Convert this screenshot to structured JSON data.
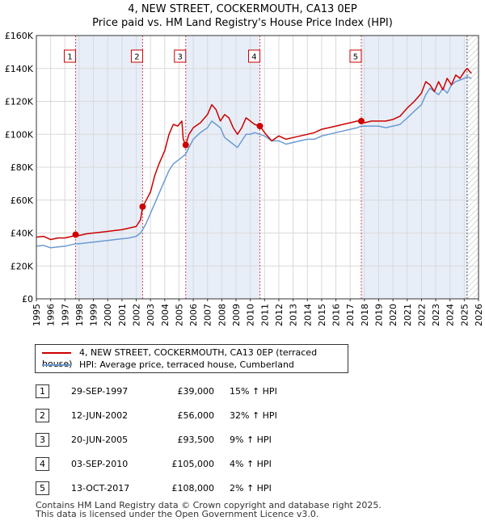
{
  "title": "4, NEW STREET, COCKERMOUTH, CA13 0EP",
  "subtitle": "Price paid vs. HM Land Registry's House Price Index (HPI)",
  "legend": {
    "red_label": "4, NEW STREET, COCKERMOUTH, CA13 0EP (terraced house)",
    "blue_label": "HPI: Average price, terraced house, Cumberland"
  },
  "sales": [
    {
      "num": "1",
      "date": "29-SEP-1997",
      "price": "£39,000",
      "hpi": "15% ↑ HPI"
    },
    {
      "num": "2",
      "date": "12-JUN-2002",
      "price": "£56,000",
      "hpi": "32% ↑ HPI"
    },
    {
      "num": "3",
      "date": "20-JUN-2005",
      "price": "£93,500",
      "hpi": "9% ↑ HPI"
    },
    {
      "num": "4",
      "date": "03-SEP-2010",
      "price": "£105,000",
      "hpi": "4% ↑ HPI"
    },
    {
      "num": "5",
      "date": "13-OCT-2017",
      "price": "£108,000",
      "hpi": "2% ↑ HPI"
    }
  ],
  "footer": {
    "line1": "Contains HM Land Registry data © Crown copyright and database right 2025.",
    "line2": "This data is licensed under the Open Government Licence v3.0."
  },
  "colors": {
    "red": "#cc0000",
    "blue": "#6b9bd2",
    "shade": "#e8eef8",
    "grid": "#d9d9d9"
  },
  "chart_data": {
    "type": "line",
    "title": "4, NEW STREET, COCKERMOUTH, CA13 0EP",
    "subtitle": "Price paid vs. HM Land Registry's House Price Index (HPI)",
    "xlabel": "",
    "ylabel": "",
    "xlim": [
      1995,
      2026
    ],
    "ylim": [
      0,
      160000
    ],
    "x_ticks": [
      1995,
      1996,
      1997,
      1998,
      1999,
      2000,
      2001,
      2002,
      2003,
      2004,
      2005,
      2006,
      2007,
      2008,
      2009,
      2010,
      2011,
      2012,
      2013,
      2014,
      2015,
      2016,
      2017,
      2018,
      2019,
      2020,
      2021,
      2022,
      2023,
      2024,
      2025,
      2026
    ],
    "y_ticks": [
      0,
      20000,
      40000,
      60000,
      80000,
      100000,
      120000,
      140000,
      160000
    ],
    "y_tick_labels": [
      "£0",
      "£20K",
      "£40K",
      "£60K",
      "£80K",
      "£100K",
      "£120K",
      "£140K",
      "£160K"
    ],
    "grid": true,
    "shaded_spans": [
      [
        1997.75,
        2002.45
      ],
      [
        2005.47,
        2010.67
      ],
      [
        2017.78,
        2025.2
      ]
    ],
    "future_hatch_from": 2025.2,
    "sale_points": [
      {
        "label": "1",
        "x": 1997.75,
        "y": 39000
      },
      {
        "label": "2",
        "x": 2002.45,
        "y": 56000
      },
      {
        "label": "3",
        "x": 2005.47,
        "y": 93500
      },
      {
        "label": "4",
        "x": 2010.67,
        "y": 105000
      },
      {
        "label": "5",
        "x": 2017.78,
        "y": 108000
      }
    ],
    "series": [
      {
        "name": "4, NEW STREET, COCKERMOUTH, CA13 0EP (terraced house)",
        "color": "#cc0000",
        "x": [
          1995.0,
          1995.5,
          1996.0,
          1996.5,
          1997.0,
          1997.5,
          1997.75,
          1998.0,
          1998.5,
          1999.0,
          1999.5,
          2000.0,
          2000.5,
          2001.0,
          2001.5,
          2002.0,
          2002.3,
          2002.45,
          2002.7,
          2003.0,
          2003.3,
          2003.6,
          2004.0,
          2004.3,
          2004.6,
          2004.9,
          2005.2,
          2005.3,
          2005.47,
          2005.7,
          2006.0,
          2006.5,
          2007.0,
          2007.3,
          2007.6,
          2007.9,
          2008.2,
          2008.5,
          2008.8,
          2009.1,
          2009.4,
          2009.7,
          2010.0,
          2010.3,
          2010.67,
          2011.0,
          2011.5,
          2012.0,
          2012.5,
          2013.0,
          2013.5,
          2014.0,
          2014.5,
          2015.0,
          2015.5,
          2016.0,
          2016.5,
          2017.0,
          2017.5,
          2017.78,
          2018.0,
          2018.5,
          2019.0,
          2019.5,
          2020.0,
          2020.5,
          2021.0,
          2021.5,
          2022.0,
          2022.3,
          2022.6,
          2022.9,
          2023.2,
          2023.5,
          2023.8,
          2024.1,
          2024.4,
          2024.7,
          2025.0,
          2025.2,
          2025.5
        ],
        "y": [
          37500,
          38000,
          36000,
          37000,
          37000,
          38000,
          39000,
          38500,
          39500,
          40000,
          40500,
          41000,
          41500,
          42000,
          43000,
          44000,
          48000,
          56000,
          60000,
          65000,
          75000,
          82000,
          90000,
          100000,
          106000,
          105000,
          108000,
          97000,
          93500,
          100000,
          104000,
          107000,
          112000,
          118000,
          115000,
          108000,
          112000,
          110000,
          104000,
          100000,
          104000,
          110000,
          108000,
          106000,
          105000,
          101000,
          96000,
          99000,
          97000,
          98000,
          99000,
          100000,
          101000,
          103000,
          104000,
          105000,
          106000,
          107000,
          108000,
          108000,
          107000,
          108000,
          108000,
          108000,
          109000,
          111000,
          116000,
          120000,
          125000,
          132000,
          130000,
          126000,
          132000,
          127000,
          134000,
          130000,
          136000,
          134000,
          138000,
          140000,
          137000
        ]
      },
      {
        "name": "HPI: Average price, terraced house, Cumberland",
        "color": "#6b9bd2",
        "x": [
          1995.0,
          1995.5,
          1996.0,
          1996.5,
          1997.0,
          1997.5,
          1997.75,
          1998.0,
          1998.5,
          1999.0,
          1999.5,
          2000.0,
          2000.5,
          2001.0,
          2001.5,
          2002.0,
          2002.3,
          2002.45,
          2002.7,
          2003.0,
          2003.3,
          2003.6,
          2004.0,
          2004.3,
          2004.6,
          2004.9,
          2005.2,
          2005.47,
          2005.7,
          2006.0,
          2006.5,
          2007.0,
          2007.3,
          2007.6,
          2007.9,
          2008.2,
          2008.5,
          2008.8,
          2009.1,
          2009.4,
          2009.7,
          2010.0,
          2010.3,
          2010.67,
          2011.0,
          2011.5,
          2012.0,
          2012.5,
          2013.0,
          2013.5,
          2014.0,
          2014.5,
          2015.0,
          2015.5,
          2016.0,
          2016.5,
          2017.0,
          2017.5,
          2017.78,
          2018.0,
          2018.5,
          2019.0,
          2019.5,
          2020.0,
          2020.5,
          2021.0,
          2021.5,
          2022.0,
          2022.3,
          2022.6,
          2022.9,
          2023.2,
          2023.5,
          2023.8,
          2024.1,
          2024.4,
          2024.7,
          2025.0,
          2025.2,
          2025.5
        ],
        "y": [
          32000,
          32500,
          31000,
          31500,
          32000,
          33000,
          33500,
          33500,
          34000,
          34500,
          35000,
          35500,
          36000,
          36500,
          37000,
          38000,
          40000,
          42000,
          46000,
          52000,
          58000,
          64000,
          72000,
          78000,
          82000,
          84000,
          86000,
          88000,
          92000,
          97000,
          101000,
          104000,
          108000,
          106000,
          104000,
          98000,
          96000,
          94000,
          92000,
          96000,
          100000,
          100000,
          101000,
          100000,
          99000,
          96000,
          96000,
          94000,
          95000,
          96000,
          97000,
          97000,
          99000,
          100000,
          101000,
          102000,
          103000,
          104000,
          105000,
          105000,
          105000,
          105000,
          104000,
          105000,
          106000,
          110000,
          114000,
          118000,
          124000,
          128000,
          126000,
          124000,
          128000,
          125000,
          130000,
          132000,
          133000,
          134000,
          135000,
          134000
        ]
      }
    ]
  }
}
